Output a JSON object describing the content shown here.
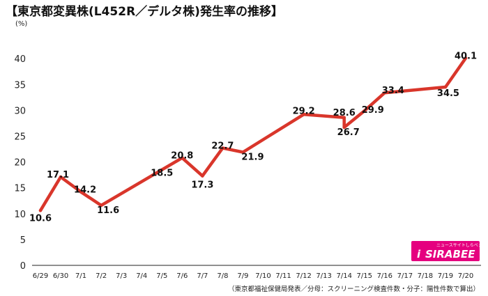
{
  "chart_data": {
    "type": "line",
    "title": "【東京都変異株(L452R／デルタ株)発生率の推移】",
    "unit_label": "(%)",
    "categories": [
      "6/29",
      "6/30",
      "7/1",
      "7/2",
      "7/3",
      "7/4",
      "7/5",
      "7/6",
      "7/7",
      "7/8",
      "7/9",
      "7/10",
      "7/11",
      "7/12",
      "7/13",
      "7/14",
      "7/15",
      "7/16",
      "7/17",
      "7/18",
      "7/19",
      "7/20"
    ],
    "points": [
      {
        "x": "6/29",
        "y": 10.6,
        "label": "10.6"
      },
      {
        "x": "6/30",
        "y": 17.1,
        "label": "17.1"
      },
      {
        "x": "7/1",
        "y": 14.2,
        "label": "14.2"
      },
      {
        "x": "7/2",
        "y": 11.6,
        "label": "11.6"
      },
      {
        "x": "7/5",
        "y": 18.5,
        "label": "18.5"
      },
      {
        "x": "7/6",
        "y": 20.8,
        "label": "20.8"
      },
      {
        "x": "7/7",
        "y": 17.3,
        "label": "17.3"
      },
      {
        "x": "7/8",
        "y": 22.7,
        "label": "22.7"
      },
      {
        "x": "7/9",
        "y": 21.9,
        "label": "21.9"
      },
      {
        "x": "7/12",
        "y": 29.2,
        "label": "29.2"
      },
      {
        "x": "7/14",
        "y": 28.6,
        "label": "28.6"
      },
      {
        "x": "7/14",
        "y": 26.7,
        "label": "26.7"
      },
      {
        "x": "7/15",
        "y": 29.9,
        "label": "29.9"
      },
      {
        "x": "7/16",
        "y": 33.4,
        "label": "33.4"
      },
      {
        "x": "7/19",
        "y": 34.5,
        "label": "34.5"
      },
      {
        "x": "7/20",
        "y": 40.1,
        "label": "40.1"
      }
    ],
    "yticks": [
      0,
      5,
      10,
      15,
      20,
      25,
      30,
      35,
      40
    ],
    "ylim": [
      0,
      45
    ],
    "grid": false,
    "line_color": "#d9362b"
  },
  "source_note": "（東京都福祉保健局発表／分母：スクリーニング検査件数・分子：陽性件数で算出）",
  "logo": {
    "name": "SIRABEE",
    "tagline": "ニュースサイトしらべぇ",
    "mark": "i",
    "bg_color": "#e5007f"
  }
}
